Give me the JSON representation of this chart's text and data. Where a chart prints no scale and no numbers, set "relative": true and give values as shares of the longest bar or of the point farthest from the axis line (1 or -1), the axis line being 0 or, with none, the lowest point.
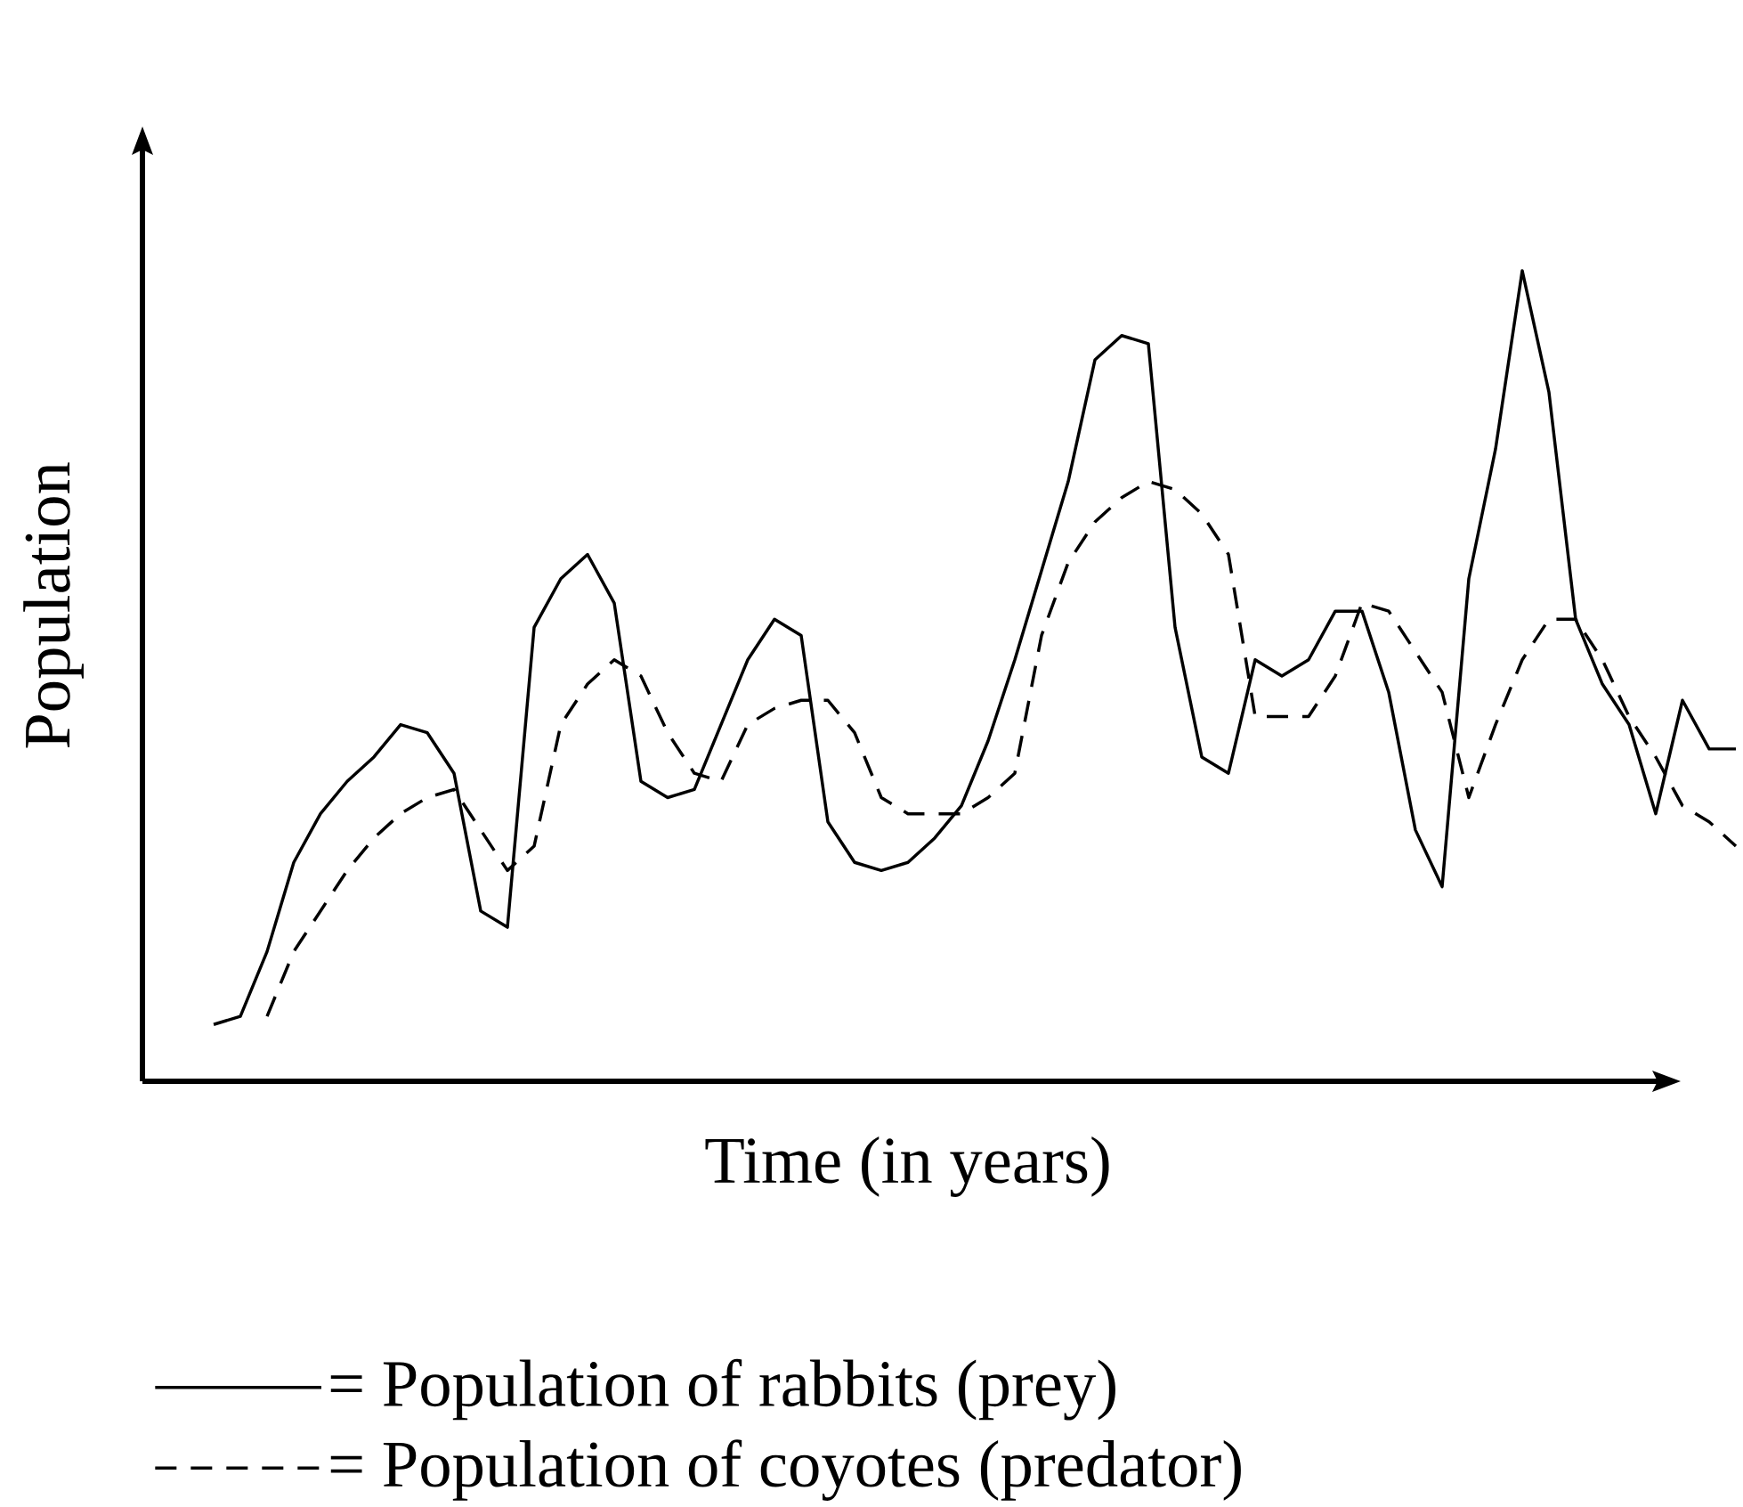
{
  "chart_data": {
    "type": "line",
    "relative": true,
    "xlabel": "Time (in years)",
    "ylabel": "Population",
    "legend": "bottom",
    "categories": [
      null,
      null,
      null,
      null,
      null,
      null,
      null,
      null,
      null,
      null,
      null,
      null,
      null,
      null,
      null,
      null,
      null,
      null,
      null,
      null,
      null,
      null,
      null,
      null,
      null,
      null,
      null,
      null,
      null,
      null,
      null,
      null,
      null,
      null,
      null,
      null,
      null,
      null,
      null,
      null,
      null,
      null,
      null,
      null,
      null,
      null,
      null,
      null,
      null,
      null,
      null,
      null,
      null,
      null,
      null,
      null,
      null,
      null
    ],
    "series": [
      {
        "name": "= Population of rabbits (prey)",
        "color": "#000000",
        "line_style": "solid",
        "values": [
          0.07,
          0.08,
          0.16,
          0.27,
          0.33,
          0.37,
          0.4,
          0.44,
          0.43,
          0.38,
          0.21,
          0.19,
          0.56,
          0.62,
          0.65,
          0.59,
          0.37,
          0.35,
          0.36,
          0.44,
          0.52,
          0.57,
          0.55,
          0.32,
          0.27,
          0.26,
          0.27,
          0.3,
          0.34,
          0.42,
          0.52,
          0.63,
          0.74,
          0.89,
          0.92,
          0.91,
          0.56,
          0.4,
          0.38,
          0.52,
          0.5,
          0.52,
          0.58,
          0.58,
          0.48,
          0.31,
          0.24,
          0.62,
          0.78,
          1.0,
          0.85,
          0.57,
          0.49,
          0.44,
          0.33,
          0.47,
          0.41,
          0.41
        ]
      },
      {
        "name": "= Population of coyotes (predator)",
        "color": "#000000",
        "line_style": "dashed",
        "values": [
          null,
          null,
          0.08,
          0.16,
          0.21,
          0.26,
          0.3,
          0.33,
          0.35,
          0.36,
          0.31,
          0.26,
          0.29,
          0.44,
          0.49,
          0.52,
          0.5,
          0.43,
          0.38,
          0.37,
          0.44,
          0.46,
          0.47,
          0.47,
          0.43,
          0.35,
          0.33,
          0.33,
          0.33,
          0.35,
          0.38,
          0.55,
          0.64,
          0.69,
          0.72,
          0.74,
          0.73,
          0.7,
          0.65,
          0.45,
          0.45,
          0.45,
          0.5,
          0.59,
          0.58,
          0.53,
          0.48,
          0.35,
          0.44,
          0.52,
          0.57,
          0.57,
          0.52,
          0.45,
          0.4,
          0.34,
          0.32,
          0.29
        ]
      }
    ]
  }
}
